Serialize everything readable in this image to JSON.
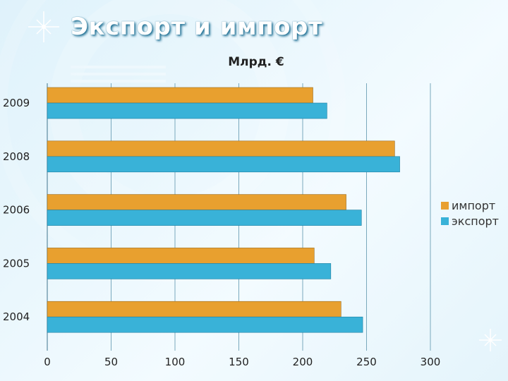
{
  "title": "Экспорт и импорт",
  "colors": {
    "import": "#e8a02f",
    "export": "#39b2d8"
  },
  "chart_data": {
    "type": "bar",
    "orientation": "horizontal",
    "title": "Экспорт и импорт",
    "unit_label": "Млрд. €",
    "categories": [
      "2009",
      "2008",
      "2006",
      "2005",
      "2004"
    ],
    "series": [
      {
        "name": "импорт",
        "values": [
          208,
          272,
          234,
          209,
          230
        ]
      },
      {
        "name": "экспорт",
        "values": [
          219,
          276,
          246,
          222,
          247
        ]
      }
    ],
    "x_ticks": [
      0,
      50,
      100,
      150,
      200,
      250,
      300
    ],
    "xlim": [
      0,
      300
    ],
    "grid": true,
    "legend_position": "right"
  }
}
